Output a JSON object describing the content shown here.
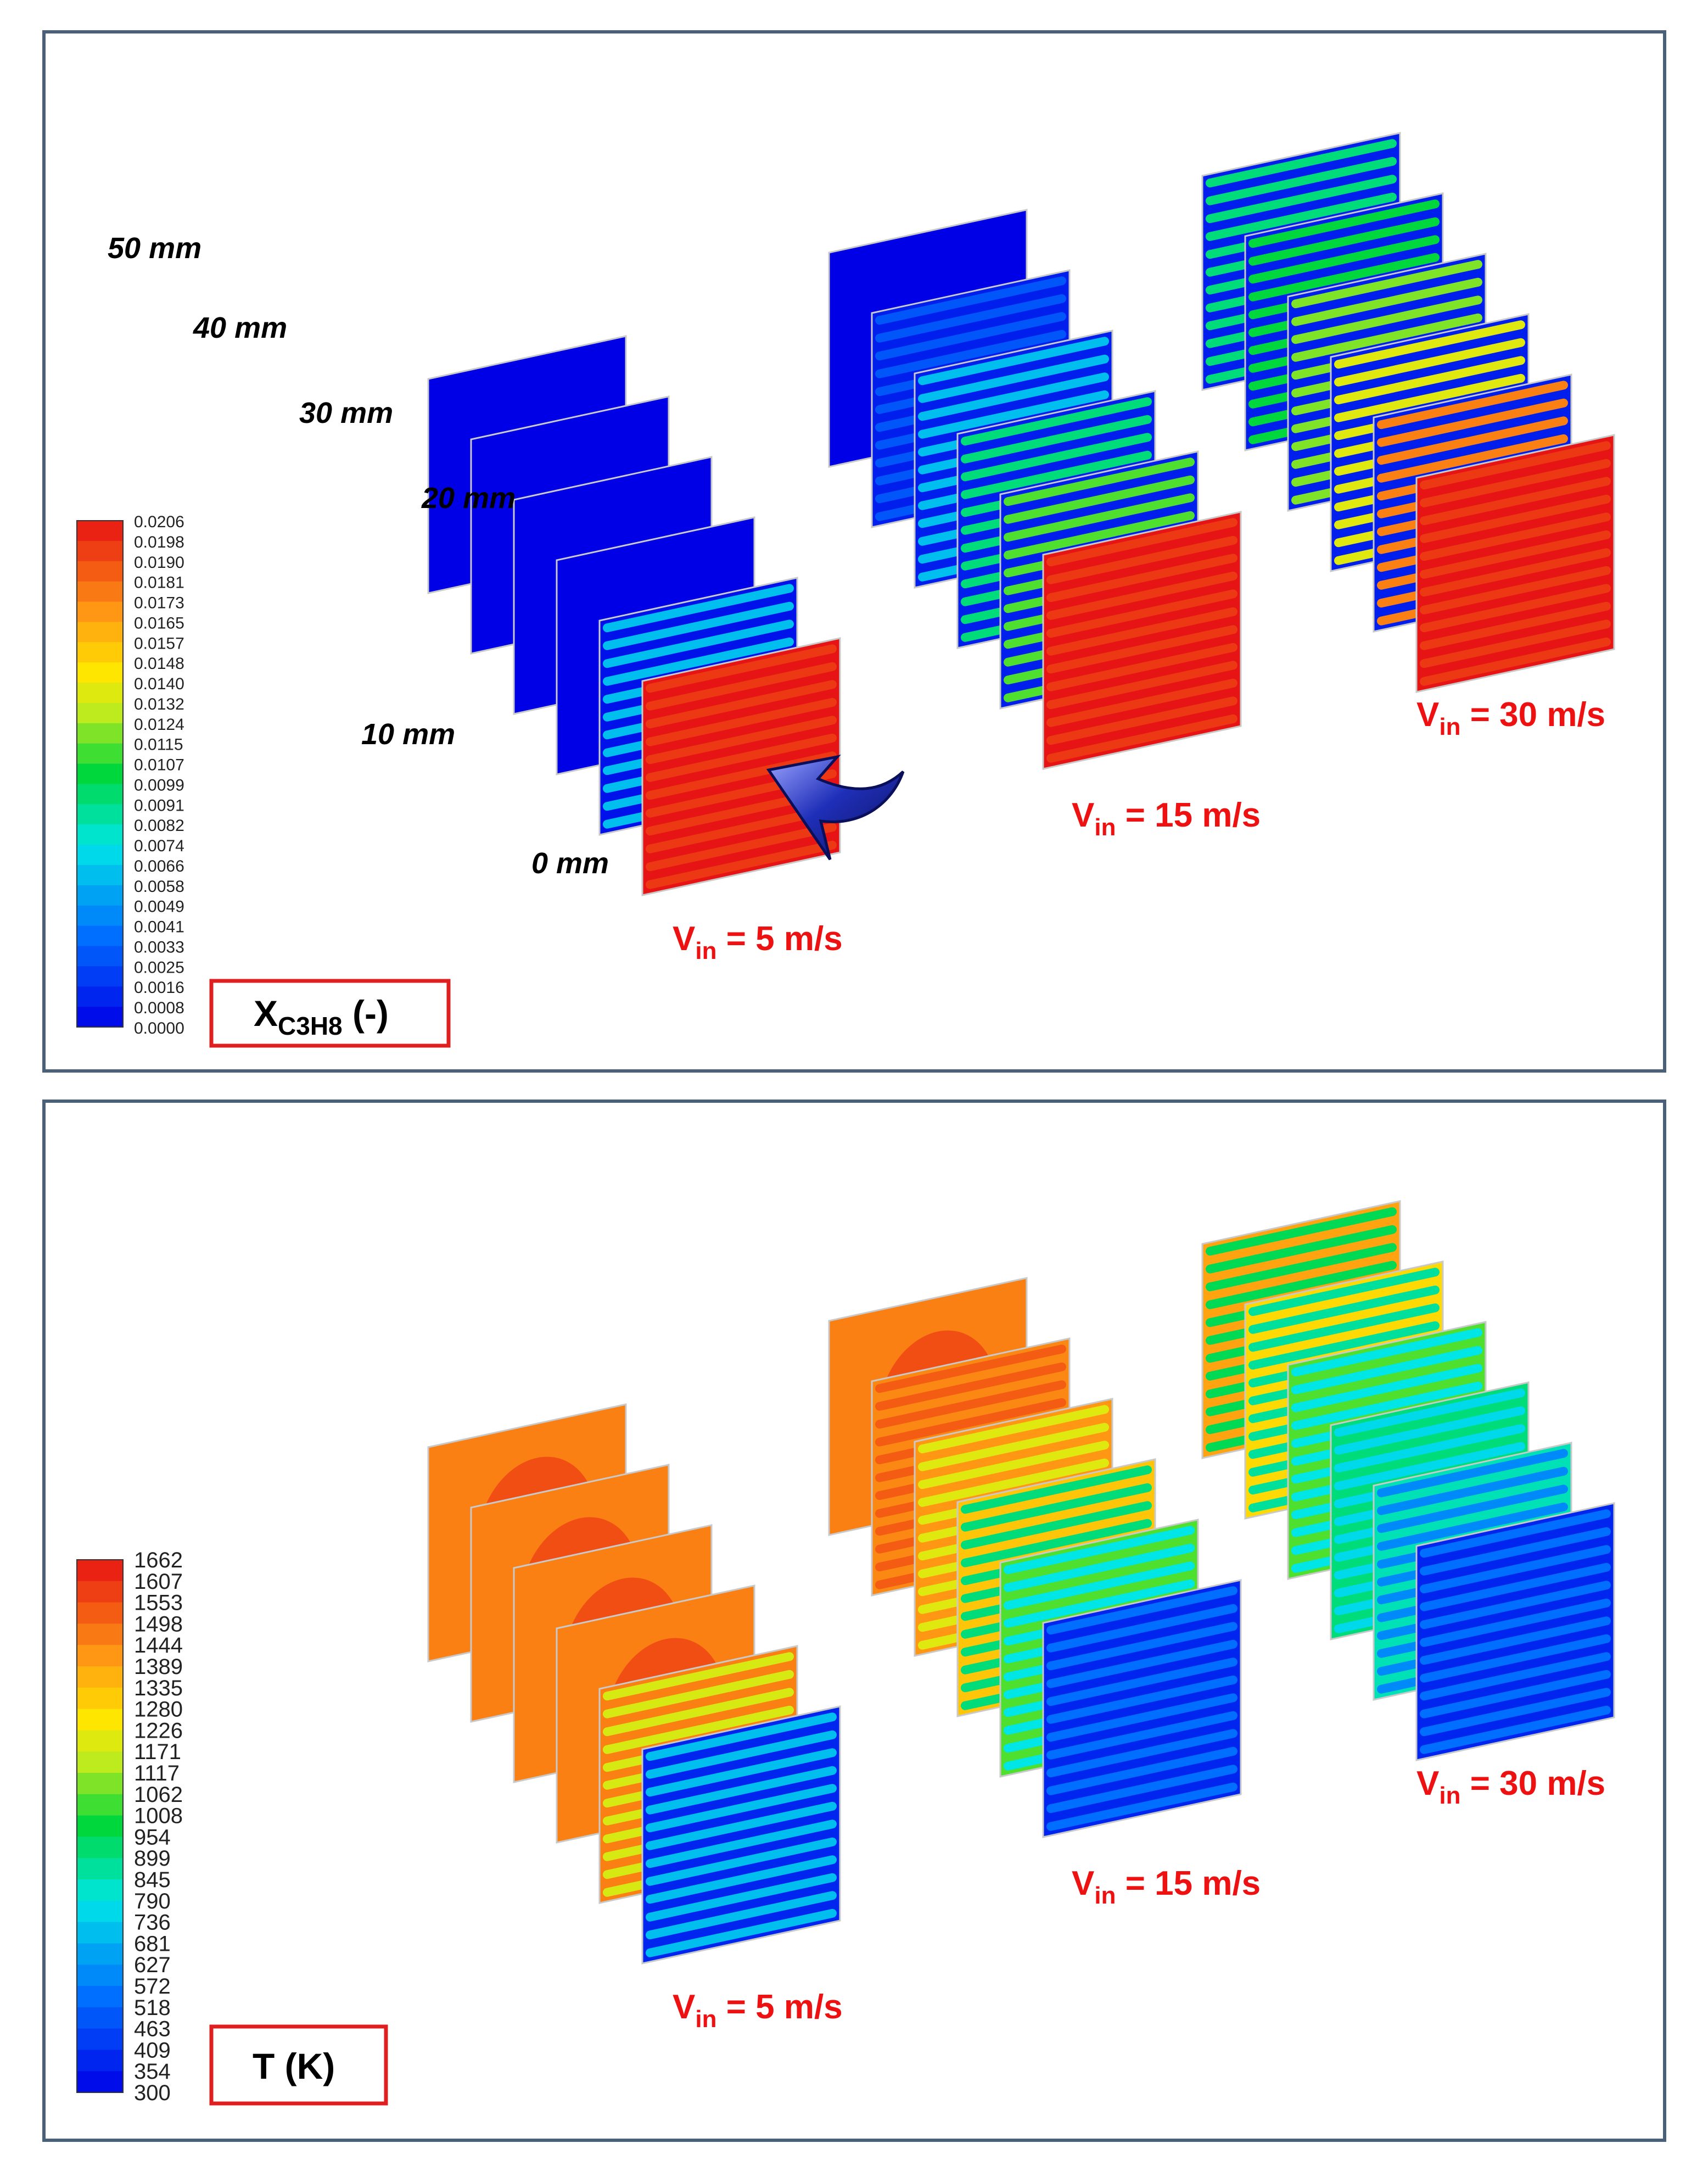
{
  "panels": [
    {
      "id": "conversion",
      "quantity": {
        "symbol": "X",
        "subscript": "C3H8",
        "suffix": " (-)"
      },
      "colorbar_ticks": [
        "0.0206",
        "0.0198",
        "0.0190",
        "0.0181",
        "0.0173",
        "0.0165",
        "0.0157",
        "0.0148",
        "0.0140",
        "0.0132",
        "0.0124",
        "0.0115",
        "0.0107",
        "0.0099",
        "0.0091",
        "0.0082",
        "0.0074",
        "0.0066",
        "0.0058",
        "0.0049",
        "0.0041",
        "0.0033",
        "0.0025",
        "0.0016",
        "0.0008",
        "0.0000"
      ],
      "distance_labels": [
        "50 mm",
        "40 mm",
        "30 mm",
        "20 mm",
        "10 mm",
        "0 mm"
      ],
      "velocity_labels": [
        {
          "prefix": "V",
          "subscript": "in",
          "suffix": " = 5 m/s"
        },
        {
          "prefix": "V",
          "subscript": "in",
          "suffix": " = 15 m/s"
        },
        {
          "prefix": "V",
          "subscript": "in",
          "suffix": " = 30 m/s"
        }
      ],
      "columns": [
        {
          "velocity": "5 m/s",
          "slices": [
            {
              "distance": "50 mm",
              "style": "uniform",
              "base": 0.0
            },
            {
              "distance": "40 mm",
              "style": "uniform",
              "base": 0.0
            },
            {
              "distance": "30 mm",
              "style": "uniform",
              "base": 0.0
            },
            {
              "distance": "20 mm",
              "style": "uniform",
              "base": 0.0
            },
            {
              "distance": "10 mm",
              "style": "channels",
              "base": 0.03,
              "stripe": 0.3
            },
            {
              "distance": "0 mm",
              "style": "channels",
              "base": 1.0,
              "stripe": 0.95
            }
          ]
        },
        {
          "velocity": "15 m/s",
          "slices": [
            {
              "distance": "50 mm",
              "style": "uniform",
              "base": 0.0
            },
            {
              "distance": "40 mm",
              "style": "channels",
              "base": 0.05,
              "stripe": 0.14
            },
            {
              "distance": "30 mm",
              "style": "channels",
              "base": 0.05,
              "stripe": 0.3
            },
            {
              "distance": "20 mm",
              "style": "channels",
              "base": 0.05,
              "stripe": 0.45
            },
            {
              "distance": "10 mm",
              "style": "channels",
              "base": 0.05,
              "stripe": 0.55
            },
            {
              "distance": "0 mm",
              "style": "channels",
              "base": 1.0,
              "stripe": 0.95
            }
          ]
        },
        {
          "velocity": "30 m/s",
          "slices": [
            {
              "distance": "50 mm",
              "style": "channels",
              "base": 0.05,
              "stripe": 0.45
            },
            {
              "distance": "40 mm",
              "style": "channels",
              "base": 0.05,
              "stripe": 0.5
            },
            {
              "distance": "30 mm",
              "style": "channels",
              "base": 0.05,
              "stripe": 0.58
            },
            {
              "distance": "20 mm",
              "style": "channels",
              "base": 0.05,
              "stripe": 0.66
            },
            {
              "distance": "10 mm",
              "style": "channels",
              "base": 0.05,
              "stripe": 0.85
            },
            {
              "distance": "0 mm",
              "style": "channels",
              "base": 1.0,
              "stripe": 0.95
            }
          ]
        }
      ]
    },
    {
      "id": "temperature",
      "quantity": {
        "symbol": "T (K)",
        "subscript": "",
        "suffix": ""
      },
      "colorbar_ticks": [
        "1662",
        "1607",
        "1553",
        "1498",
        "1444",
        "1389",
        "1335",
        "1280",
        "1226",
        "1171",
        "1117",
        "1062",
        "1008",
        "954",
        "899",
        "845",
        "790",
        "736",
        "681",
        "627",
        "572",
        "518",
        "463",
        "409",
        "354",
        "300"
      ],
      "distance_labels": [],
      "velocity_labels": [
        {
          "prefix": "V",
          "subscript": "in",
          "suffix": " = 5 m/s"
        },
        {
          "prefix": "V",
          "subscript": "in",
          "suffix": " = 15 m/s"
        },
        {
          "prefix": "V",
          "subscript": "in",
          "suffix": " = 30 m/s"
        }
      ],
      "columns": [
        {
          "velocity": "5 m/s",
          "slices": [
            {
              "distance": "50 mm",
              "style": "blob",
              "base": 0.85,
              "stripe": 0.92
            },
            {
              "distance": "40 mm",
              "style": "blob",
              "base": 0.85,
              "stripe": 0.92
            },
            {
              "distance": "30 mm",
              "style": "blob",
              "base": 0.85,
              "stripe": 0.92
            },
            {
              "distance": "20 mm",
              "style": "blob",
              "base": 0.85,
              "stripe": 0.92
            },
            {
              "distance": "10 mm",
              "style": "channels",
              "base": 0.85,
              "stripe": 0.65
            },
            {
              "distance": "0 mm",
              "style": "channels",
              "base": 0.06,
              "stripe": 0.3
            }
          ]
        },
        {
          "velocity": "15 m/s",
          "slices": [
            {
              "distance": "50 mm",
              "style": "blob",
              "base": 0.85,
              "stripe": 0.92
            },
            {
              "distance": "40 mm",
              "style": "channels",
              "base": 0.84,
              "stripe": 0.9
            },
            {
              "distance": "30 mm",
              "style": "channels",
              "base": 0.82,
              "stripe": 0.66
            },
            {
              "distance": "20 mm",
              "style": "channels",
              "base": 0.75,
              "stripe": 0.45
            },
            {
              "distance": "10 mm",
              "style": "channels",
              "base": 0.55,
              "stripe": 0.36
            },
            {
              "distance": "0 mm",
              "style": "channels",
              "base": 0.06,
              "stripe": 0.18
            }
          ]
        },
        {
          "velocity": "30 m/s",
          "slices": [
            {
              "distance": "50 mm",
              "style": "channels",
              "base": 0.8,
              "stripe": 0.48
            },
            {
              "distance": "40 mm",
              "style": "channels",
              "base": 0.72,
              "stripe": 0.42
            },
            {
              "distance": "30 mm",
              "style": "channels",
              "base": 0.55,
              "stripe": 0.36
            },
            {
              "distance": "20 mm",
              "style": "channels",
              "base": 0.45,
              "stripe": 0.34
            },
            {
              "distance": "10 mm",
              "style": "channels",
              "base": 0.4,
              "stripe": 0.22
            },
            {
              "distance": "0 mm",
              "style": "channels",
              "base": 0.06,
              "stripe": 0.18
            }
          ]
        }
      ]
    }
  ]
}
